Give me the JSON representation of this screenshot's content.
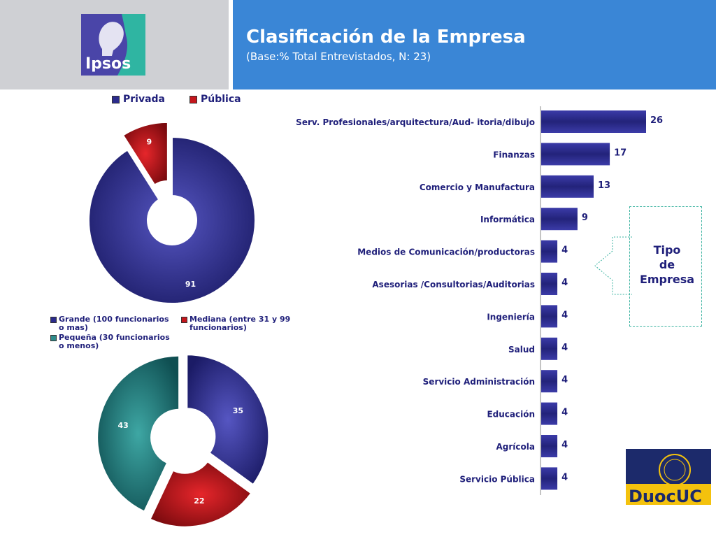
{
  "header": {
    "title": "Clasificación de la Empresa",
    "subtitle": "(Base:% Total Entrevistados, N: 23)",
    "logo_text": "Ipsos"
  },
  "logos": {
    "duoc_text": "DuocUC"
  },
  "annotation": {
    "line1": "Tipo",
    "line2": "de",
    "line3": "Empresa"
  },
  "colors": {
    "navy": "#2b2b8c",
    "red": "#c4161c",
    "teal": "#2e8b8b",
    "header_blue": "#3a86d6"
  },
  "chart_data": [
    {
      "type": "pie",
      "legend": [
        "Privada",
        "Pública"
      ],
      "legend_position": "top",
      "slices": [
        {
          "label": "Privada",
          "value": 91,
          "color": "#2b2b8c"
        },
        {
          "label": "Pública",
          "value": 9,
          "color": "#c4161c"
        }
      ]
    },
    {
      "type": "pie",
      "legend": [
        "Grande (100 funcionarios o mas)",
        "Mediana (entre 31 y 99 funcionarios)",
        "Pequeña (30 funcionarios o menos)"
      ],
      "legend_position": "top",
      "slices": [
        {
          "label": "Grande (100 funcionarios o mas)",
          "value": 35,
          "color": "#2b2b8c"
        },
        {
          "label": "Mediana (entre 31 y 99 funcionarios)",
          "value": 22,
          "color": "#c4161c"
        },
        {
          "label": "Pequeña (30 funcionarios o menos)",
          "value": 43,
          "color": "#2e8b8b"
        }
      ]
    },
    {
      "type": "bar",
      "orientation": "horizontal",
      "categories": [
        "Serv. Profesionales/arquitectura/Aud- itoria/dibujo",
        "Finanzas",
        "Comercio y Manufactura",
        "Informática",
        "Medios de Comunicación/productoras",
        "Asesorias /Consultorias/Auditorias",
        "Ingeniería",
        "Salud",
        "Servicio Administración",
        "Educación",
        "Agrícola",
        "Servicio Pública"
      ],
      "values": [
        26,
        17,
        13,
        9,
        4,
        4,
        4,
        4,
        4,
        4,
        4,
        4
      ],
      "color": "#2b2b8c"
    }
  ]
}
